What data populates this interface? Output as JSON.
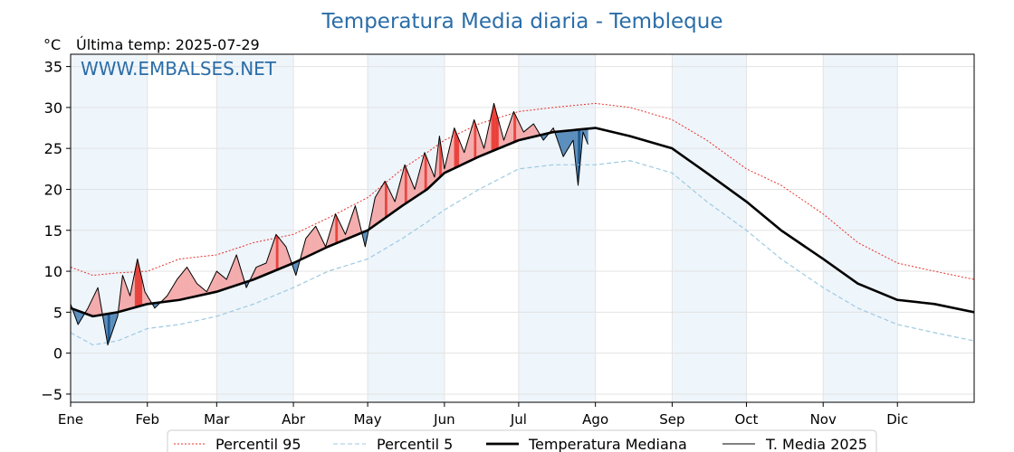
{
  "chart_data": {
    "type": "line",
    "title": "Temperatura Media diaria - Tembleque",
    "unit": "°C",
    "last_temp_label": "Última temp: 2025-07-29",
    "watermark": "WWW.EMBALSES.NET",
    "ylim": [
      -6,
      36.5
    ],
    "yticks": [
      -5,
      0,
      5,
      10,
      15,
      20,
      25,
      30,
      35
    ],
    "xlim": [
      1,
      366
    ],
    "grid": true,
    "months": [
      "Ene",
      "Feb",
      "Mar",
      "Abr",
      "May",
      "Jun",
      "Jul",
      "Ago",
      "Sep",
      "Oct",
      "Nov",
      "Dic"
    ],
    "legend_position": "bottom",
    "colors": {
      "title": "#2b6da8",
      "p95": "#e8312a",
      "p5": "#9ecae1",
      "median": "#000000",
      "current": "#000000",
      "above_fill": "#f4a6a6",
      "above_strong": "#e8312a",
      "below_fill": "#4f86b8",
      "below_strong": "#0c4a85",
      "band": "#eef5fb"
    },
    "series": [
      {
        "name": "Percentil 95",
        "style": "dotted",
        "x": [
          1,
          10,
          20,
          32,
          45,
          60,
          75,
          91,
          105,
          121,
          135,
          145,
          152,
          166,
          182,
          196,
          213,
          227,
          244,
          258,
          274,
          288,
          305,
          319,
          335,
          350,
          366
        ],
        "values": [
          10.5,
          9.5,
          9.8,
          10.0,
          11.5,
          12.0,
          13.5,
          14.5,
          16.5,
          19.0,
          22.5,
          24.5,
          26.0,
          28.0,
          29.5,
          30.0,
          30.5,
          30.0,
          28.5,
          26.0,
          22.5,
          20.5,
          17.0,
          13.5,
          11.0,
          10.0,
          9.0
        ]
      },
      {
        "name": "Percentil 5",
        "style": "dashed",
        "x": [
          1,
          10,
          20,
          32,
          45,
          60,
          75,
          91,
          105,
          121,
          135,
          145,
          152,
          166,
          182,
          196,
          213,
          227,
          244,
          258,
          274,
          288,
          305,
          319,
          335,
          350,
          366
        ],
        "values": [
          2.5,
          1.0,
          1.5,
          3.0,
          3.5,
          4.5,
          6.0,
          8.0,
          10.0,
          11.5,
          14.0,
          16.0,
          17.5,
          20.0,
          22.5,
          23.0,
          23.0,
          23.5,
          22.0,
          18.5,
          15.0,
          11.5,
          8.0,
          5.5,
          3.5,
          2.5,
          1.5
        ]
      },
      {
        "name": "Temperatura Mediana",
        "style": "solid-thick",
        "x": [
          1,
          10,
          20,
          32,
          45,
          60,
          75,
          91,
          105,
          121,
          135,
          145,
          152,
          166,
          182,
          196,
          213,
          227,
          244,
          258,
          274,
          288,
          305,
          319,
          335,
          350,
          366
        ],
        "values": [
          5.5,
          4.5,
          5.0,
          6.0,
          6.5,
          7.5,
          9.0,
          11.0,
          13.0,
          15.0,
          18.0,
          20.0,
          22.0,
          24.0,
          26.0,
          27.0,
          27.5,
          26.5,
          25.0,
          22.0,
          18.5,
          15.0,
          11.5,
          8.5,
          6.5,
          6.0,
          5.0
        ]
      },
      {
        "name": "T. Media 2025",
        "style": "solid-thin",
        "x": [
          1,
          4,
          8,
          12,
          14,
          16,
          20,
          22,
          25,
          28,
          31,
          35,
          40,
          44,
          48,
          52,
          56,
          60,
          64,
          68,
          72,
          76,
          80,
          84,
          88,
          92,
          96,
          100,
          104,
          108,
          112,
          116,
          120,
          124,
          128,
          132,
          136,
          140,
          144,
          148,
          150,
          152,
          156,
          160,
          164,
          168,
          172,
          176,
          180,
          184,
          188,
          192,
          196,
          200,
          204,
          206,
          208,
          210
        ],
        "values": [
          6.0,
          3.5,
          5.5,
          8.0,
          4.5,
          1.0,
          4.5,
          9.5,
          7.0,
          11.5,
          7.5,
          5.5,
          7.0,
          9.0,
          10.5,
          8.5,
          7.5,
          10.0,
          9.0,
          12.0,
          8.0,
          10.5,
          11.0,
          14.5,
          13.0,
          9.5,
          14.0,
          15.5,
          13.0,
          17.0,
          14.5,
          18.0,
          13.0,
          19.0,
          21.0,
          18.5,
          23.0,
          20.0,
          24.5,
          21.5,
          26.5,
          22.5,
          27.5,
          24.5,
          28.5,
          25.0,
          30.5,
          26.0,
          29.5,
          27.0,
          28.0,
          26.0,
          27.5,
          24.0,
          26.0,
          20.5,
          27.0,
          25.5
        ]
      }
    ]
  }
}
